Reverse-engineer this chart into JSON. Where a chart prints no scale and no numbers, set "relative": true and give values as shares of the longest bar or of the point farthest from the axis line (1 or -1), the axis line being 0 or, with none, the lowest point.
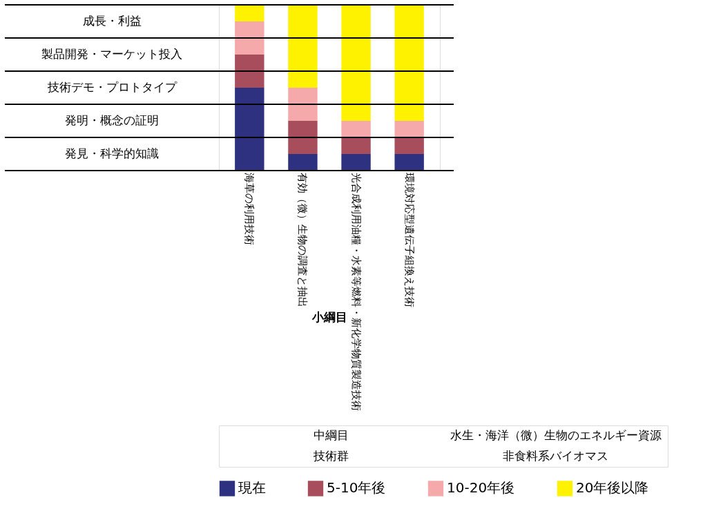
{
  "chart_data": {
    "type": "bar",
    "stacked": true,
    "relative": true,
    "xlabel": "小綱目",
    "categories": [
      "海草の利用技術",
      "有効（微）生物の調査と抽出",
      "光合成利用油糧・水素等燃料・新化学物質製造技術",
      "環境対応型遺伝子組換え技術"
    ],
    "series": [
      {
        "name": "現在",
        "color": "#2e3080",
        "values": [
          0.5,
          0.1,
          0.1,
          0.1
        ]
      },
      {
        "name": "5-10年後",
        "color": "#a84d5c",
        "values": [
          0.2,
          0.2,
          0.1,
          0.1
        ]
      },
      {
        "name": "10-20年後",
        "color": "#f6a9ab",
        "values": [
          0.2,
          0.2,
          0.1,
          0.1
        ]
      },
      {
        "name": "20年後以降",
        "color": "#fff200",
        "values": [
          0.1,
          0.5,
          0.7,
          0.7
        ]
      }
    ],
    "ref_lines": [
      {
        "axis": "y",
        "value": 0,
        "label": null,
        "color": "#000000"
      },
      {
        "axis": "y",
        "value": 0.2,
        "label": null,
        "color": "#000000"
      },
      {
        "axis": "y",
        "value": 0.4,
        "label": null,
        "color": "#000000"
      },
      {
        "axis": "y",
        "value": 0.6,
        "label": null,
        "color": "#000000"
      },
      {
        "axis": "y",
        "value": 0.8,
        "label": null,
        "color": "#000000"
      },
      {
        "axis": "y",
        "value": 1,
        "label": null,
        "color": "#000000"
      }
    ],
    "legend": "bottom",
    "annotations": [
      "発見・科学的知識",
      "発明・概念の証明",
      "技術デモ・プロトタイプ",
      "製品開発・マーケット投入",
      "成長・利益",
      "中綱目",
      "水生・海洋（微）生物のエネルギー資源",
      "技術群",
      "非食料系バイオマス"
    ]
  }
}
